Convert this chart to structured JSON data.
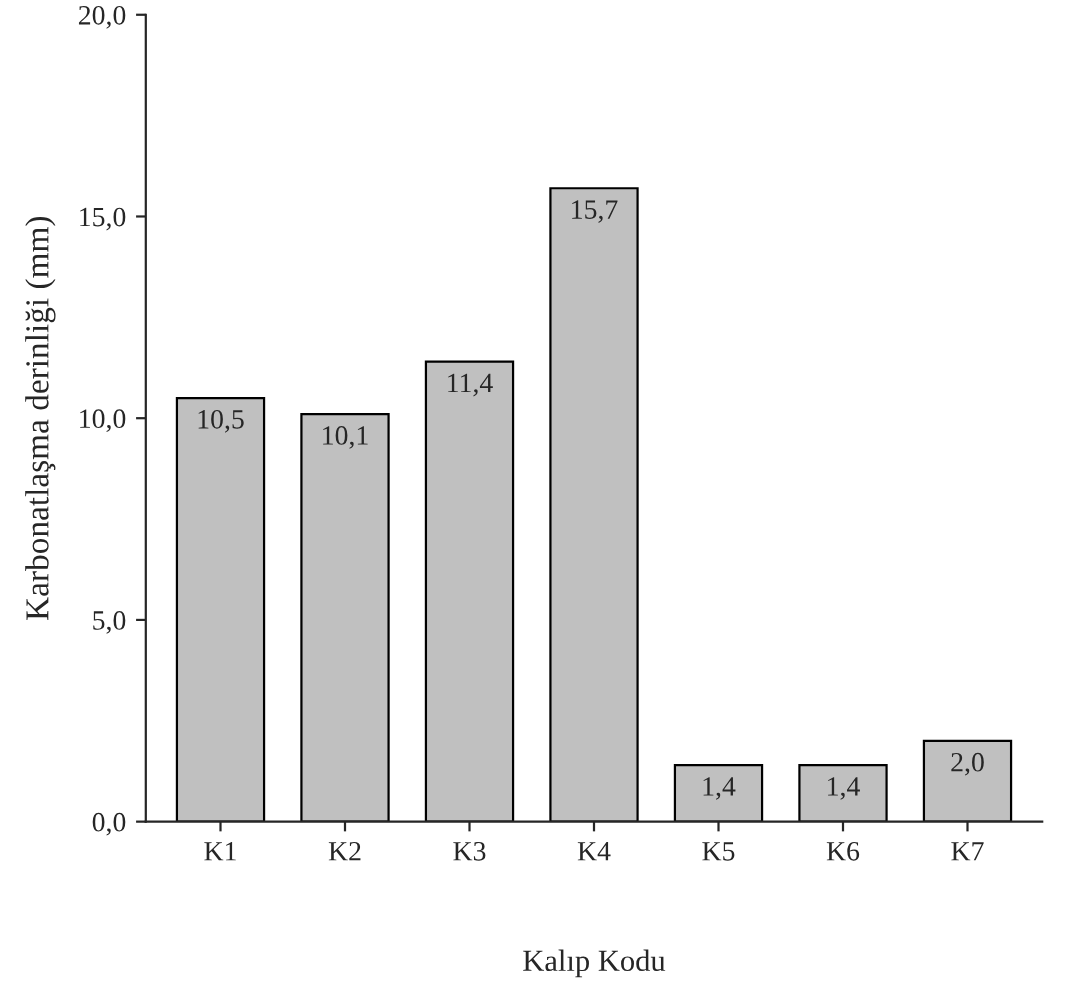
{
  "chart_data": {
    "type": "bar",
    "xlabel": "Kalıp Kodu",
    "ylabel": "Karbonatlaşma derinliği (mm)",
    "categories": [
      "K1",
      "K2",
      "K3",
      "K4",
      "K5",
      "K6",
      "K7"
    ],
    "values": [
      10.5,
      10.1,
      11.4,
      15.7,
      1.4,
      1.4,
      2.0
    ],
    "value_labels": [
      "10,5",
      "10,1",
      "11,4",
      "15,7",
      "1,4",
      "1,4",
      "2,0"
    ],
    "color": "#c0c0c0",
    "ylim": [
      0,
      20
    ],
    "yticks": [
      {
        "value": 0,
        "label": "0,0"
      },
      {
        "value": 5,
        "label": "5,0"
      },
      {
        "value": 10,
        "label": "10,0"
      },
      {
        "value": 15,
        "label": "15,0"
      },
      {
        "value": 20,
        "label": "20,0"
      }
    ],
    "grid": false,
    "legend": false
  }
}
